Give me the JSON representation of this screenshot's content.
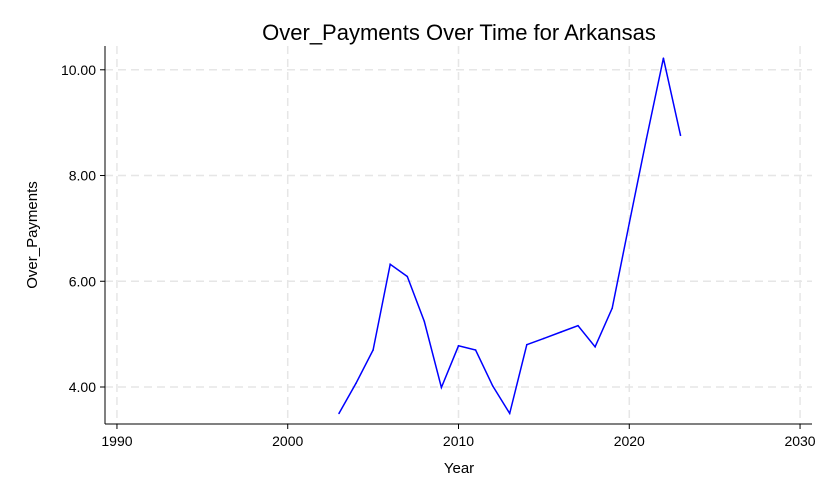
{
  "chart_data": {
    "type": "line",
    "title": "Over_Payments Over Time for Arkansas",
    "xlabel": "Year",
    "ylabel": "Over_Payments",
    "xlim": [
      1989.3,
      2030.7
    ],
    "ylim": [
      3.3,
      10.45
    ],
    "x_ticks": [
      1990,
      2000,
      2010,
      2020,
      2030
    ],
    "y_ticks": [
      4,
      6,
      8,
      10
    ],
    "y_tick_labels": [
      "4.00",
      "6.00",
      "8.00",
      "10.00"
    ],
    "grid": true,
    "line_color": "#0000ff",
    "grid_color": "#e6e6e6",
    "series": [
      {
        "x": [
          2003,
          2004,
          2005,
          2006,
          2007,
          2008,
          2009,
          2010,
          2011,
          2012,
          2013,
          2014,
          2015,
          2016,
          2017,
          2018,
          2019,
          2020,
          2021,
          2022,
          2023
        ],
        "values": [
          3.5,
          4.07,
          4.7,
          6.32,
          6.09,
          5.24,
          3.99,
          4.78,
          4.7,
          4.02,
          3.5,
          4.8,
          4.92,
          5.04,
          5.16,
          4.76,
          5.49,
          7.1,
          8.69,
          10.22,
          8.76
        ]
      }
    ]
  }
}
